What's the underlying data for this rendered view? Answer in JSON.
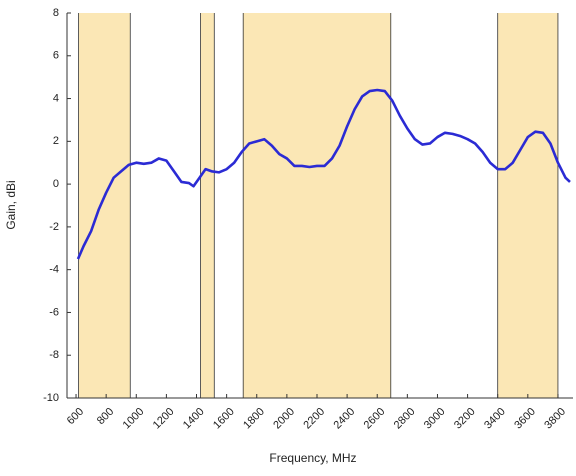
{
  "chart_data": {
    "type": "line",
    "x_label": "Frequency, MHz",
    "y_label": "Gain, dBi",
    "x": [
      613,
      650,
      700,
      750,
      800,
      850,
      900,
      950,
      1000,
      1050,
      1100,
      1150,
      1200,
      1250,
      1300,
      1350,
      1380,
      1420,
      1460,
      1500,
      1550,
      1600,
      1650,
      1700,
      1750,
      1800,
      1850,
      1900,
      1950,
      2000,
      2050,
      2100,
      2150,
      2200,
      2250,
      2300,
      2350,
      2400,
      2450,
      2500,
      2550,
      2600,
      2650,
      2700,
      2750,
      2800,
      2850,
      2900,
      2950,
      3000,
      3050,
      3100,
      3150,
      3200,
      3250,
      3300,
      3350,
      3400,
      3450,
      3500,
      3550,
      3600,
      3650,
      3700,
      3750,
      3800,
      3850,
      3880
    ],
    "series": [
      {
        "color": "#2b2bd4",
        "values": [
          -3.5,
          -2.9,
          -2.2,
          -1.2,
          -0.4,
          0.3,
          0.6,
          0.9,
          1.0,
          0.95,
          1.0,
          1.2,
          1.1,
          0.6,
          0.1,
          0.05,
          -0.1,
          0.3,
          0.7,
          0.6,
          0.55,
          0.7,
          1.0,
          1.5,
          1.9,
          2.0,
          2.1,
          1.8,
          1.4,
          1.2,
          0.85,
          0.85,
          0.8,
          0.85,
          0.85,
          1.2,
          1.8,
          2.7,
          3.5,
          4.1,
          4.35,
          4.4,
          4.35,
          3.9,
          3.2,
          2.6,
          2.1,
          1.85,
          1.9,
          2.2,
          2.4,
          2.35,
          2.25,
          2.1,
          1.9,
          1.5,
          1.0,
          0.7,
          0.7,
          1.0,
          1.6,
          2.2,
          2.45,
          2.4,
          1.9,
          1.0,
          0.3,
          0.1
        ]
      }
    ],
    "shaded_bands": [
      [
        617,
        960
      ],
      [
        1427,
        1518
      ],
      [
        1710,
        2690
      ],
      [
        3400,
        3800
      ]
    ],
    "band_color": "#fbe7b5",
    "xlim": [
      540,
      3900
    ],
    "xticks": [
      600,
      800,
      1000,
      1200,
      1400,
      1600,
      1800,
      2000,
      2200,
      2400,
      2600,
      2800,
      3000,
      3200,
      3400,
      3600,
      3800
    ],
    "ylim": [
      -10,
      8
    ],
    "yticks": [
      -10,
      -8,
      -6,
      -4,
      -2,
      0,
      2,
      4,
      6,
      8
    ]
  }
}
